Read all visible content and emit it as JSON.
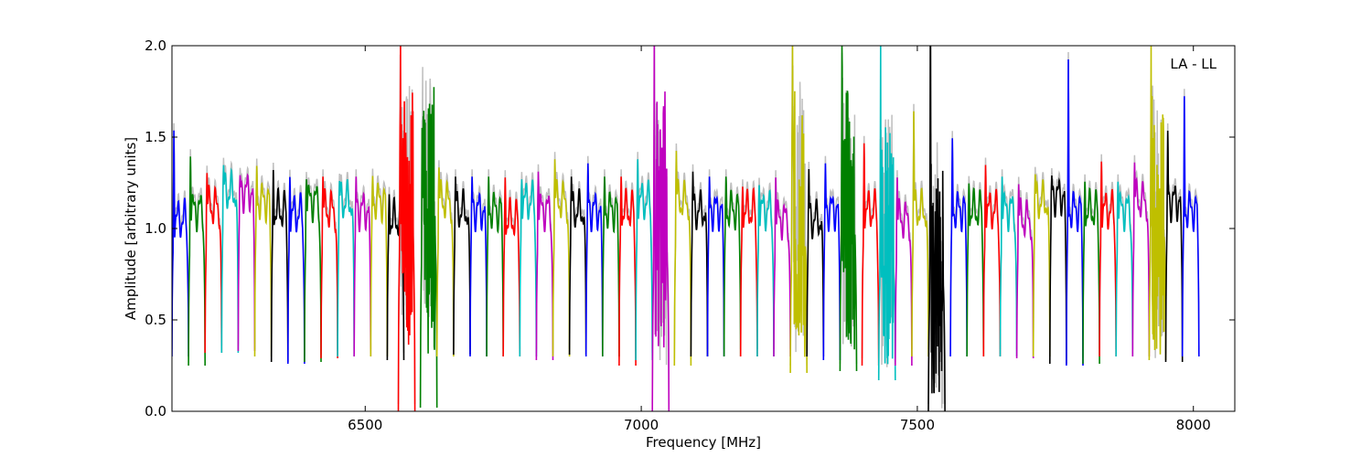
{
  "chart_data": {
    "type": "line",
    "title": "",
    "xlabel": "Frequency [MHz]",
    "ylabel": "Amplitude [arbitrary units]",
    "xlim": [
      6150,
      8075
    ],
    "ylim": [
      0.0,
      2.0
    ],
    "x_ticks": [
      6500,
      7000,
      7500,
      8000
    ],
    "x_tick_labels": [
      "6500",
      "7000",
      "7500",
      "8000"
    ],
    "y_ticks": [
      0.0,
      0.5,
      1.0,
      1.5,
      2.0
    ],
    "y_tick_labels": [
      "0.0",
      "0.5",
      "1.0",
      "1.5",
      "2.0"
    ],
    "grid": false,
    "annotation": "LA - LL",
    "annotation_placement": "top-right",
    "background_series_color": "#bfbfbf",
    "channel_width_mhz": 30,
    "series_colors": [
      "#0000ff",
      "#008000",
      "#ff0000",
      "#00bfbf",
      "#bf00bf",
      "#bfbf00",
      "#000000"
    ],
    "series": [
      {
        "start": 6150,
        "color": "#0000ff",
        "peak": 1.58,
        "mid": 1.05,
        "floor": 0.3
      },
      {
        "start": 6180,
        "color": "#008000",
        "peak": 1.42,
        "mid": 1.1,
        "floor": 0.25
      },
      {
        "start": 6210,
        "color": "#ff0000",
        "peak": 1.32,
        "mid": 1.12,
        "floor": 0.32
      },
      {
        "start": 6240,
        "color": "#00bfbf",
        "peak": 1.36,
        "mid": 1.2,
        "floor": 0.32
      },
      {
        "start": 6270,
        "color": "#bf00bf",
        "peak": 1.3,
        "mid": 1.2,
        "floor": 0.33
      },
      {
        "start": 6300,
        "color": "#bfbf00",
        "peak": 1.36,
        "mid": 1.15,
        "floor": 0.3
      },
      {
        "start": 6330,
        "color": "#000000",
        "peak": 1.34,
        "mid": 1.1,
        "floor": 0.27
      },
      {
        "start": 6360,
        "color": "#0000ff",
        "peak": 1.3,
        "mid": 1.08,
        "floor": 0.26
      },
      {
        "start": 6390,
        "color": "#008000",
        "peak": 1.28,
        "mid": 1.15,
        "floor": 0.27
      },
      {
        "start": 6420,
        "color": "#ff0000",
        "peak": 1.3,
        "mid": 1.1,
        "floor": 0.29
      },
      {
        "start": 6450,
        "color": "#00bfbf",
        "peak": 1.27,
        "mid": 1.15,
        "floor": 0.3
      },
      {
        "start": 6480,
        "color": "#bf00bf",
        "peak": 1.3,
        "mid": 1.1,
        "floor": 0.3
      },
      {
        "start": 6510,
        "color": "#bfbf00",
        "peak": 1.3,
        "mid": 1.15,
        "floor": 0.3
      },
      {
        "start": 6540,
        "color": "#000000",
        "peak": 1.2,
        "mid": 1.05,
        "floor": 0.28
      },
      {
        "start": 6560,
        "color": "#ff0000",
        "peak": 2.0,
        "mid": 1.1,
        "floor": 0.0,
        "noisy": true
      },
      {
        "start": 6600,
        "color": "#008000",
        "peak": 2.0,
        "mid": 1.1,
        "floor": 0.02,
        "noisy": true
      },
      {
        "start": 6630,
        "color": "#bfbf00",
        "peak": 1.35,
        "mid": 1.15,
        "floor": 0.3
      },
      {
        "start": 6660,
        "color": "#000000",
        "peak": 1.3,
        "mid": 1.1,
        "floor": 0.31
      },
      {
        "start": 6690,
        "color": "#0000ff",
        "peak": 1.3,
        "mid": 1.1,
        "floor": 0.3
      },
      {
        "start": 6720,
        "color": "#008000",
        "peak": 1.3,
        "mid": 1.1,
        "floor": 0.3
      },
      {
        "start": 6750,
        "color": "#ff0000",
        "peak": 1.3,
        "mid": 1.05,
        "floor": 0.3
      },
      {
        "start": 6780,
        "color": "#00bfbf",
        "peak": 1.28,
        "mid": 1.15,
        "floor": 0.3
      },
      {
        "start": 6810,
        "color": "#bf00bf",
        "peak": 1.33,
        "mid": 1.1,
        "floor": 0.28
      },
      {
        "start": 6840,
        "color": "#bfbf00",
        "peak": 1.4,
        "mid": 1.15,
        "floor": 0.3
      },
      {
        "start": 6870,
        "color": "#000000",
        "peak": 1.3,
        "mid": 1.1,
        "floor": 0.31
      },
      {
        "start": 6900,
        "color": "#0000ff",
        "peak": 1.38,
        "mid": 1.1,
        "floor": 0.3
      },
      {
        "start": 6930,
        "color": "#008000",
        "peak": 1.3,
        "mid": 1.1,
        "floor": 0.3
      },
      {
        "start": 6960,
        "color": "#ff0000",
        "peak": 1.3,
        "mid": 1.1,
        "floor": 0.25
      },
      {
        "start": 6990,
        "color": "#00bfbf",
        "peak": 1.4,
        "mid": 1.15,
        "floor": 0.28
      },
      {
        "start": 7020,
        "color": "#bf00bf",
        "peak": 2.0,
        "mid": 1.0,
        "floor": 0.0,
        "noisy": true
      },
      {
        "start": 7060,
        "color": "#bfbf00",
        "peak": 1.45,
        "mid": 1.15,
        "floor": 0.25
      },
      {
        "start": 7090,
        "color": "#000000",
        "peak": 1.33,
        "mid": 1.1,
        "floor": 0.3
      },
      {
        "start": 7120,
        "color": "#0000ff",
        "peak": 1.3,
        "mid": 1.1,
        "floor": 0.3
      },
      {
        "start": 7150,
        "color": "#008000",
        "peak": 1.3,
        "mid": 1.1,
        "floor": 0.3
      },
      {
        "start": 7180,
        "color": "#ff0000",
        "peak": 1.24,
        "mid": 1.1,
        "floor": 0.3
      },
      {
        "start": 7210,
        "color": "#00bfbf",
        "peak": 1.25,
        "mid": 1.1,
        "floor": 0.3
      },
      {
        "start": 7240,
        "color": "#bf00bf",
        "peak": 1.3,
        "mid": 1.05,
        "floor": 0.3
      },
      {
        "start": 7270,
        "color": "#bfbf00",
        "peak": 2.0,
        "mid": 1.0,
        "floor": 0.21,
        "noisy": true
      },
      {
        "start": 7300,
        "color": "#000000",
        "peak": 1.35,
        "mid": 1.05,
        "floor": 0.3
      },
      {
        "start": 7330,
        "color": "#0000ff",
        "peak": 1.38,
        "mid": 1.1,
        "floor": 0.28
      },
      {
        "start": 7360,
        "color": "#008000",
        "peak": 2.0,
        "mid": 1.0,
        "floor": 0.22,
        "noisy": true
      },
      {
        "start": 7400,
        "color": "#ff0000",
        "peak": 1.5,
        "mid": 1.1,
        "floor": 0.25
      },
      {
        "start": 7430,
        "color": "#00bfbf",
        "peak": 2.0,
        "mid": 0.9,
        "floor": 0.17,
        "noisy": true
      },
      {
        "start": 7460,
        "color": "#bf00bf",
        "peak": 1.3,
        "mid": 1.05,
        "floor": 0.25
      },
      {
        "start": 7490,
        "color": "#bfbf00",
        "peak": 1.69,
        "mid": 1.1,
        "floor": 0.3
      },
      {
        "start": 7520,
        "color": "#000000",
        "peak": 2.0,
        "mid": 0.7,
        "floor": 0.0,
        "noisy": true
      },
      {
        "start": 7560,
        "color": "#0000ff",
        "peak": 1.53,
        "mid": 1.1,
        "floor": 0.3
      },
      {
        "start": 7590,
        "color": "#008000",
        "peak": 1.26,
        "mid": 1.1,
        "floor": 0.3
      },
      {
        "start": 7620,
        "color": "#ff0000",
        "peak": 1.37,
        "mid": 1.1,
        "floor": 0.3
      },
      {
        "start": 7650,
        "color": "#00bfbf",
        "peak": 1.3,
        "mid": 1.1,
        "floor": 0.3
      },
      {
        "start": 7680,
        "color": "#bf00bf",
        "peak": 1.26,
        "mid": 1.05,
        "floor": 0.29
      },
      {
        "start": 7710,
        "color": "#bfbf00",
        "peak": 1.31,
        "mid": 1.15,
        "floor": 0.3
      },
      {
        "start": 7740,
        "color": "#000000",
        "peak": 1.3,
        "mid": 1.18,
        "floor": 0.26
      },
      {
        "start": 7770,
        "color": "#0000ff",
        "peak": 2.0,
        "mid": 1.1,
        "floor": 0.25
      },
      {
        "start": 7800,
        "color": "#008000",
        "peak": 1.27,
        "mid": 1.1,
        "floor": 0.26
      },
      {
        "start": 7830,
        "color": "#ff0000",
        "peak": 1.39,
        "mid": 1.1,
        "floor": 0.3
      },
      {
        "start": 7860,
        "color": "#00bfbf",
        "peak": 1.27,
        "mid": 1.1,
        "floor": 0.3
      },
      {
        "start": 7890,
        "color": "#bf00bf",
        "peak": 1.38,
        "mid": 1.15,
        "floor": 0.3
      },
      {
        "start": 7920,
        "color": "#bfbf00",
        "peak": 2.0,
        "mid": 1.0,
        "floor": 0.28,
        "noisy": true
      },
      {
        "start": 7950,
        "color": "#000000",
        "peak": 1.57,
        "mid": 1.15,
        "floor": 0.27
      },
      {
        "start": 7980,
        "color": "#0000ff",
        "peak": 1.78,
        "mid": 1.1,
        "floor": 0.3
      }
    ]
  }
}
